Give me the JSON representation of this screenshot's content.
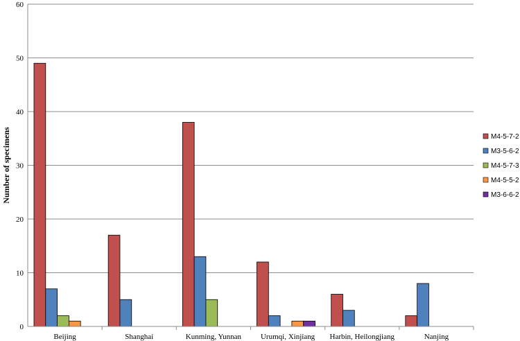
{
  "chart_data": {
    "type": "bar",
    "title": "",
    "xlabel": "",
    "ylabel": "Number of specimens",
    "ylim": [
      0,
      60
    ],
    "yticks": [
      0,
      10,
      20,
      30,
      40,
      50,
      60
    ],
    "grid": true,
    "legend": "right",
    "categories": [
      "Beijing",
      "Shanghai",
      "Kunming, Yunnan",
      "Urumqi, Xinjiang",
      "Harbin, Heilongjiang",
      "Nanjing"
    ],
    "series": [
      {
        "name": "M4-5-7-2",
        "color": "#C0504D",
        "values": [
          49,
          17,
          38,
          12,
          6,
          2
        ]
      },
      {
        "name": "M3-5-6-2",
        "color": "#4F81BD",
        "values": [
          7,
          5,
          13,
          2,
          3,
          8
        ]
      },
      {
        "name": "M4-5-7-3",
        "color": "#9BBB59",
        "values": [
          2,
          0,
          5,
          0,
          0,
          0
        ]
      },
      {
        "name": "M4-5-5-2",
        "color": "#F79646",
        "values": [
          1,
          0,
          0,
          1,
          0,
          0
        ]
      },
      {
        "name": "M3-6-6-2",
        "color": "#7030A0",
        "values": [
          0,
          0,
          0,
          1,
          0,
          0
        ]
      }
    ]
  }
}
